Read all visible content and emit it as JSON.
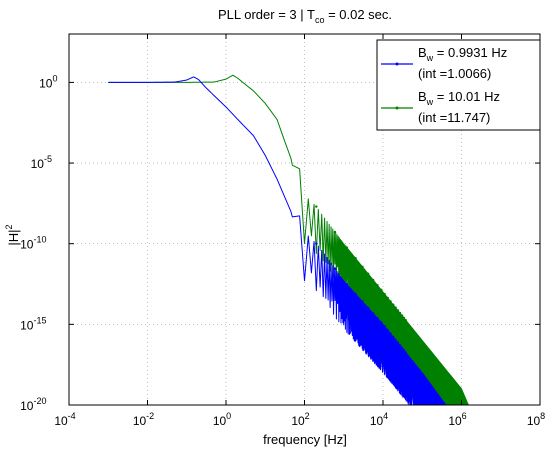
{
  "chart_data": {
    "type": "line",
    "title_parts": {
      "pre": "PLL order = 3  |  T",
      "sub": "co",
      "post": " = 0.02 sec."
    },
    "xlabel": "frequency [Hz]",
    "ylabel_parts": {
      "base": "|H|",
      "sup": "2"
    },
    "xscale": "log",
    "yscale": "log",
    "xlim": [
      0.0001,
      100000000
    ],
    "ylim": [
      1e-20,
      1000.0
    ],
    "grid": true,
    "legend_position": "top-right",
    "x_ticks": [
      {
        "base": "10",
        "exp": "-4",
        "value": 0.0001
      },
      {
        "base": "10",
        "exp": "-2",
        "value": 0.01
      },
      {
        "base": "10",
        "exp": "0",
        "value": 1
      },
      {
        "base": "10",
        "exp": "2",
        "value": 100
      },
      {
        "base": "10",
        "exp": "4",
        "value": 10000
      },
      {
        "base": "10",
        "exp": "6",
        "value": 1000000
      },
      {
        "base": "10",
        "exp": "8",
        "value": 100000000
      }
    ],
    "y_ticks": [
      {
        "base": "10",
        "exp": "0",
        "value": 1
      },
      {
        "base": "10",
        "exp": "-5",
        "value": 1e-05
      },
      {
        "base": "10",
        "exp": "-10",
        "value": 1e-10
      },
      {
        "base": "10",
        "exp": "-15",
        "value": 1e-15
      },
      {
        "base": "10",
        "exp": "-20",
        "value": 1e-20
      }
    ],
    "series": [
      {
        "legend_main": {
          "pre": "B",
          "sub": "w",
          "post": " = 0.9931 Hz"
        },
        "legend_int": "(int =1.0066)",
        "color": "#0000ff",
        "Bw": 0.9931,
        "points": [
          [
            0.001,
            1
          ],
          [
            0.01,
            1
          ],
          [
            0.05,
            1.05
          ],
          [
            0.1,
            1.4
          ],
          [
            0.15,
            2.2
          ],
          [
            0.2,
            1.5
          ],
          [
            0.3,
            0.5
          ],
          [
            0.5,
            0.15
          ],
          [
            1,
            0.03
          ],
          [
            2,
            0.005
          ],
          [
            5,
            0.0005
          ],
          [
            10,
            3e-05
          ],
          [
            20,
            1e-06
          ],
          [
            30,
            1e-07
          ],
          [
            45,
            1e-08
          ],
          [
            58,
            1e-09
          ],
          [
            70,
            1e-08
          ],
          [
            90,
            1e-09
          ],
          [
            100,
            5e-10
          ],
          [
            150,
            2e-10
          ],
          [
            200,
            1e-10
          ],
          [
            300,
            3e-11
          ],
          [
            1000,
            5e-13
          ],
          [
            10000,
            1e-15
          ],
          [
            100000,
            1e-18
          ],
          [
            400000,
            1e-20
          ]
        ],
        "notch_spacing_hz": 50,
        "notch_depth_decades": 3
      },
      {
        "legend_main": {
          "pre": "B",
          "sub": "w",
          "post": " = 10.01 Hz"
        },
        "legend_int": "(int =11.747)",
        "color": "#008000",
        "Bw": 10.01,
        "points": [
          [
            0.001,
            1
          ],
          [
            0.1,
            1
          ],
          [
            0.5,
            1.05
          ],
          [
            1,
            1.6
          ],
          [
            1.5,
            2.8
          ],
          [
            2,
            1.8
          ],
          [
            3,
            0.8
          ],
          [
            5,
            0.3
          ],
          [
            10,
            0.05
          ],
          [
            20,
            0.005
          ],
          [
            30,
            0.0003
          ],
          [
            45,
            2e-05
          ],
          [
            58,
            1e-06
          ],
          [
            70,
            1e-05
          ],
          [
            90,
            5e-07
          ],
          [
            100,
            1e-07
          ],
          [
            200,
            2e-08
          ],
          [
            300,
            5e-09
          ],
          [
            1000,
            1e-10
          ],
          [
            10000,
            1e-13
          ],
          [
            100000,
            1e-16
          ],
          [
            1000000,
            1e-19
          ],
          [
            1500000,
            1e-20
          ]
        ],
        "notch_spacing_hz": 50,
        "notch_depth_decades": 3
      }
    ]
  }
}
